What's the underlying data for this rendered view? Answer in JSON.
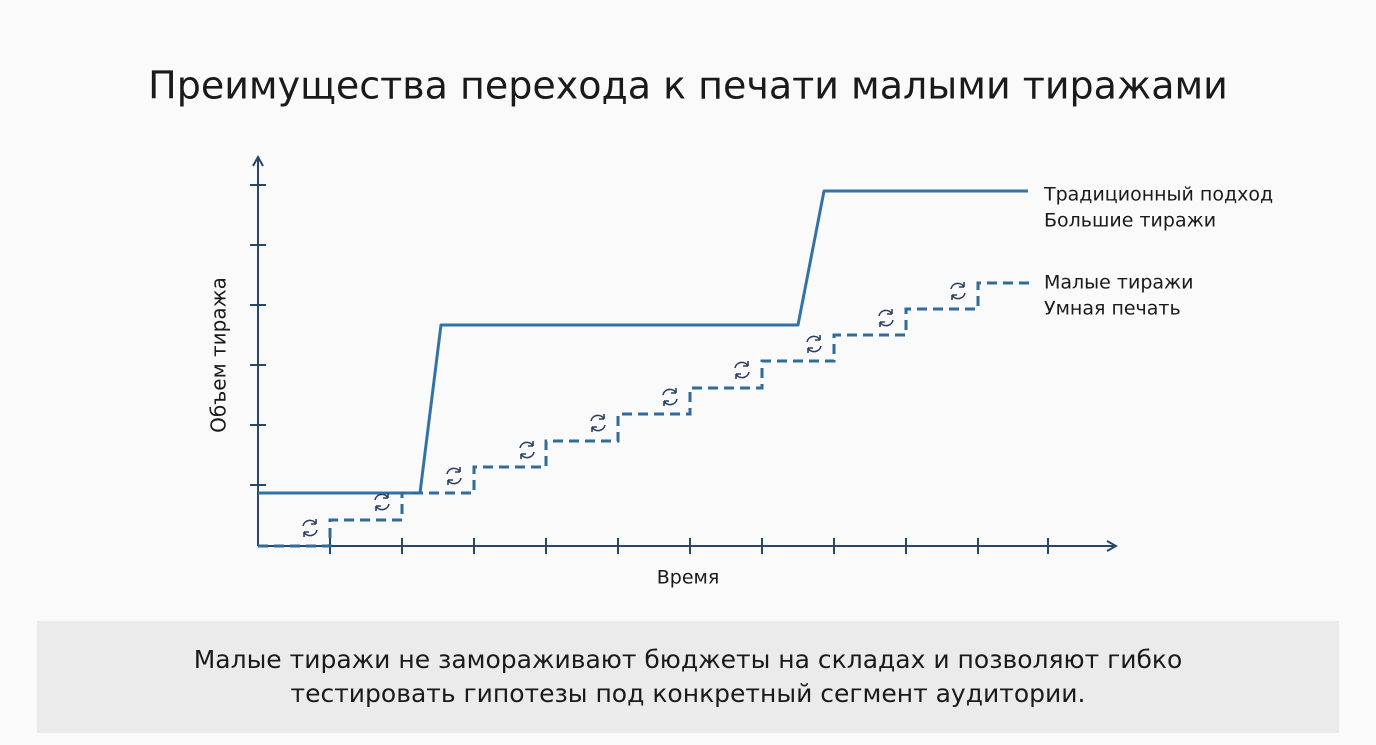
{
  "title": "Преимущества перехода к печати малыми тиражами",
  "diagram": {
    "y_axis_label": "Объем тиража",
    "x_axis_label": "Время",
    "legend": [
      {
        "lines": [
          "Традиционный подход",
          "Большие тиражи"
        ]
      },
      {
        "lines": [
          "Малые тиражи",
          "Умная печать"
        ]
      }
    ]
  },
  "caption": {
    "lines": [
      "Малые тиражи не замораживают бюджеты на складах и позволяют гибко",
      "тестировать гипотезы под конкретный сегмент аудитории."
    ]
  }
}
